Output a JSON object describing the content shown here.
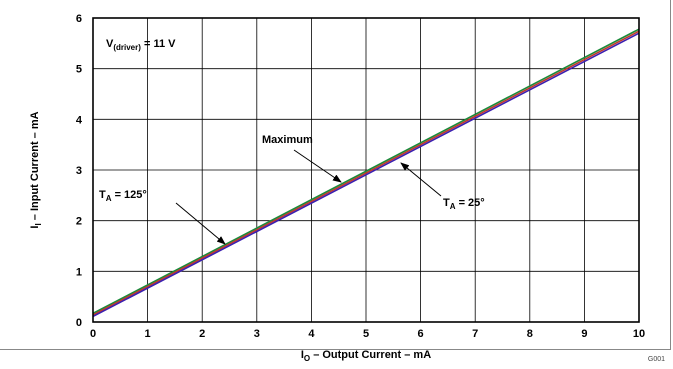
{
  "chart_data": {
    "type": "line",
    "xlabel": {
      "main": "I",
      "sub": "O",
      "rest": " – Output Current – mA"
    },
    "ylabel": {
      "main": "I",
      "sub": "I",
      "rest": " – Input Current – mA"
    },
    "xlim": [
      0,
      10
    ],
    "ylim": [
      0,
      6
    ],
    "x_ticks": [
      "0",
      "1",
      "2",
      "3",
      "4",
      "5",
      "6",
      "7",
      "8",
      "9",
      "10"
    ],
    "y_ticks": [
      "0",
      "1",
      "2",
      "3",
      "4",
      "5",
      "6"
    ],
    "grid": true,
    "series": [
      {
        "color": "#1a8a3a",
        "x": [
          0,
          10
        ],
        "y": [
          0.17,
          5.78
        ]
      },
      {
        "color": "#c0392b",
        "x": [
          0,
          10
        ],
        "y": [
          0.14,
          5.74
        ]
      },
      {
        "color": "#3b1fb0",
        "x": [
          0,
          10
        ],
        "y": [
          0.11,
          5.7
        ]
      }
    ],
    "annotations": {
      "condition": {
        "main": "V",
        "sub": "(driver)",
        "rest": " = 11 V"
      },
      "maximum": "Maximum",
      "t125": {
        "main": "T",
        "sub": "A",
        "rest": " = 125°"
      },
      "t25": {
        "main": "T",
        "sub": "A",
        "rest": " = 25°"
      }
    }
  },
  "figure_code": "G001"
}
